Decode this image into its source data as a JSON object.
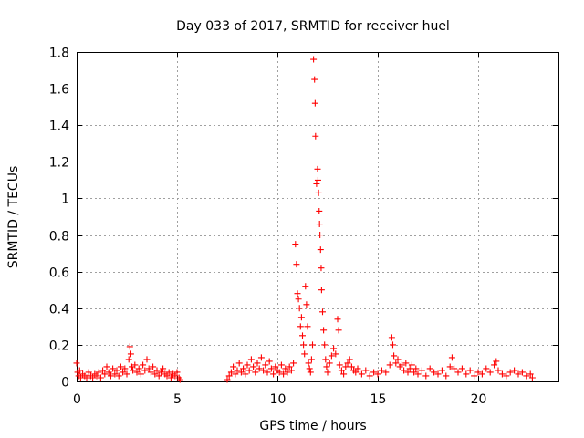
{
  "chart_data": {
    "type": "scatter",
    "title": "Day 033 of 2017, SRMTID for receiver huel",
    "xlabel": "GPS time / hours",
    "ylabel": "SRMTID / TECUs",
    "xlim": [
      0,
      24
    ],
    "ylim": [
      0,
      1.8
    ],
    "xticks": [
      0,
      5,
      10,
      15,
      20
    ],
    "xtick_labels": [
      "0",
      "5",
      "10",
      "15",
      "20"
    ],
    "yticks": [
      0,
      0.2,
      0.4,
      0.6,
      0.8,
      1.0,
      1.2,
      1.4,
      1.6,
      1.8
    ],
    "ytick_labels": [
      "0",
      "0.2",
      "0.4",
      "0.6",
      "0.8",
      "1",
      "1.2",
      "1.4",
      "1.6",
      "1.8"
    ],
    "grid": true,
    "marker": "+",
    "color": "#ff0000",
    "series": [
      {
        "name": "SRMTID",
        "points": [
          [
            0.0,
            0.1
          ],
          [
            0.05,
            0.05
          ],
          [
            0.1,
            0.03
          ],
          [
            0.15,
            0.06
          ],
          [
            0.2,
            0.02
          ],
          [
            0.3,
            0.04
          ],
          [
            0.4,
            0.03
          ],
          [
            0.5,
            0.02
          ],
          [
            0.6,
            0.05
          ],
          [
            0.7,
            0.03
          ],
          [
            0.8,
            0.02
          ],
          [
            0.9,
            0.04
          ],
          [
            1.0,
            0.03
          ],
          [
            1.1,
            0.05
          ],
          [
            1.2,
            0.02
          ],
          [
            1.3,
            0.06
          ],
          [
            1.4,
            0.04
          ],
          [
            1.5,
            0.08
          ],
          [
            1.6,
            0.05
          ],
          [
            1.7,
            0.03
          ],
          [
            1.8,
            0.07
          ],
          [
            1.9,
            0.04
          ],
          [
            2.0,
            0.06
          ],
          [
            2.1,
            0.03
          ],
          [
            2.2,
            0.08
          ],
          [
            2.3,
            0.05
          ],
          [
            2.4,
            0.07
          ],
          [
            2.5,
            0.04
          ],
          [
            2.6,
            0.12
          ],
          [
            2.65,
            0.19
          ],
          [
            2.7,
            0.15
          ],
          [
            2.75,
            0.08
          ],
          [
            2.8,
            0.06
          ],
          [
            2.9,
            0.09
          ],
          [
            3.0,
            0.05
          ],
          [
            3.1,
            0.07
          ],
          [
            3.2,
            0.04
          ],
          [
            3.3,
            0.09
          ],
          [
            3.4,
            0.06
          ],
          [
            3.5,
            0.12
          ],
          [
            3.6,
            0.07
          ],
          [
            3.7,
            0.05
          ],
          [
            3.8,
            0.08
          ],
          [
            3.9,
            0.04
          ],
          [
            4.0,
            0.06
          ],
          [
            4.1,
            0.03
          ],
          [
            4.2,
            0.05
          ],
          [
            4.3,
            0.07
          ],
          [
            4.4,
            0.04
          ],
          [
            4.5,
            0.03
          ],
          [
            4.6,
            0.05
          ],
          [
            4.7,
            0.02
          ],
          [
            4.8,
            0.04
          ],
          [
            4.9,
            0.03
          ],
          [
            5.0,
            0.05
          ],
          [
            5.1,
            0.02
          ],
          [
            5.15,
            0.01
          ],
          [
            7.5,
            0.01
          ],
          [
            7.6,
            0.03
          ],
          [
            7.7,
            0.05
          ],
          [
            7.8,
            0.08
          ],
          [
            7.9,
            0.04
          ],
          [
            8.0,
            0.06
          ],
          [
            8.1,
            0.1
          ],
          [
            8.2,
            0.05
          ],
          [
            8.3,
            0.07
          ],
          [
            8.4,
            0.04
          ],
          [
            8.5,
            0.09
          ],
          [
            8.6,
            0.06
          ],
          [
            8.7,
            0.12
          ],
          [
            8.8,
            0.08
          ],
          [
            8.9,
            0.05
          ],
          [
            9.0,
            0.1
          ],
          [
            9.1,
            0.07
          ],
          [
            9.2,
            0.13
          ],
          [
            9.3,
            0.06
          ],
          [
            9.4,
            0.09
          ],
          [
            9.5,
            0.05
          ],
          [
            9.6,
            0.11
          ],
          [
            9.7,
            0.07
          ],
          [
            9.8,
            0.04
          ],
          [
            9.9,
            0.08
          ],
          [
            10.0,
            0.06
          ],
          [
            10.1,
            0.05
          ],
          [
            10.2,
            0.09
          ],
          [
            10.3,
            0.04
          ],
          [
            10.4,
            0.07
          ],
          [
            10.5,
            0.05
          ],
          [
            10.6,
            0.08
          ],
          [
            10.7,
            0.06
          ],
          [
            10.8,
            0.1
          ],
          [
            10.9,
            0.75
          ],
          [
            10.95,
            0.64
          ],
          [
            11.0,
            0.48
          ],
          [
            11.05,
            0.45
          ],
          [
            11.1,
            0.4
          ],
          [
            11.15,
            0.3
          ],
          [
            11.2,
            0.35
          ],
          [
            11.25,
            0.25
          ],
          [
            11.3,
            0.2
          ],
          [
            11.35,
            0.15
          ],
          [
            11.4,
            0.52
          ],
          [
            11.45,
            0.42
          ],
          [
            11.5,
            0.3
          ],
          [
            11.55,
            0.1
          ],
          [
            11.6,
            0.07
          ],
          [
            11.65,
            0.05
          ],
          [
            11.7,
            0.12
          ],
          [
            11.75,
            0.2
          ],
          [
            11.8,
            1.76
          ],
          [
            11.85,
            1.65
          ],
          [
            11.88,
            1.52
          ],
          [
            11.9,
            1.34
          ],
          [
            11.95,
            1.08
          ],
          [
            12.0,
            1.16
          ],
          [
            12.02,
            1.1
          ],
          [
            12.05,
            1.03
          ],
          [
            12.08,
            0.93
          ],
          [
            12.1,
            0.86
          ],
          [
            12.12,
            0.8
          ],
          [
            12.15,
            0.72
          ],
          [
            12.18,
            0.62
          ],
          [
            12.2,
            0.5
          ],
          [
            12.25,
            0.38
          ],
          [
            12.3,
            0.28
          ],
          [
            12.35,
            0.2
          ],
          [
            12.4,
            0.12
          ],
          [
            12.45,
            0.08
          ],
          [
            12.5,
            0.05
          ],
          [
            12.6,
            0.1
          ],
          [
            12.7,
            0.14
          ],
          [
            12.8,
            0.18
          ],
          [
            12.9,
            0.15
          ],
          [
            13.0,
            0.34
          ],
          [
            13.05,
            0.28
          ],
          [
            13.1,
            0.09
          ],
          [
            13.2,
            0.06
          ],
          [
            13.3,
            0.04
          ],
          [
            13.4,
            0.08
          ],
          [
            13.5,
            0.1
          ],
          [
            13.6,
            0.12
          ],
          [
            13.7,
            0.08
          ],
          [
            13.8,
            0.06
          ],
          [
            13.9,
            0.05
          ],
          [
            14.0,
            0.07
          ],
          [
            14.2,
            0.04
          ],
          [
            14.4,
            0.06
          ],
          [
            14.6,
            0.03
          ],
          [
            14.8,
            0.05
          ],
          [
            15.0,
            0.04
          ],
          [
            15.2,
            0.06
          ],
          [
            15.4,
            0.05
          ],
          [
            15.6,
            0.09
          ],
          [
            15.7,
            0.24
          ],
          [
            15.75,
            0.2
          ],
          [
            15.8,
            0.14
          ],
          [
            15.9,
            0.1
          ],
          [
            16.0,
            0.12
          ],
          [
            16.1,
            0.08
          ],
          [
            16.2,
            0.09
          ],
          [
            16.3,
            0.06
          ],
          [
            16.4,
            0.1
          ],
          [
            16.5,
            0.05
          ],
          [
            16.6,
            0.07
          ],
          [
            16.7,
            0.09
          ],
          [
            16.8,
            0.05
          ],
          [
            16.9,
            0.07
          ],
          [
            17.0,
            0.04
          ],
          [
            17.2,
            0.06
          ],
          [
            17.4,
            0.03
          ],
          [
            17.6,
            0.07
          ],
          [
            17.8,
            0.05
          ],
          [
            18.0,
            0.04
          ],
          [
            18.2,
            0.06
          ],
          [
            18.4,
            0.03
          ],
          [
            18.6,
            0.08
          ],
          [
            18.7,
            0.13
          ],
          [
            18.8,
            0.07
          ],
          [
            19.0,
            0.05
          ],
          [
            19.2,
            0.07
          ],
          [
            19.4,
            0.04
          ],
          [
            19.6,
            0.06
          ],
          [
            19.8,
            0.03
          ],
          [
            20.0,
            0.05
          ],
          [
            20.2,
            0.04
          ],
          [
            20.4,
            0.07
          ],
          [
            20.6,
            0.05
          ],
          [
            20.8,
            0.09
          ],
          [
            20.9,
            0.11
          ],
          [
            21.0,
            0.06
          ],
          [
            21.2,
            0.04
          ],
          [
            21.4,
            0.03
          ],
          [
            21.6,
            0.05
          ],
          [
            21.8,
            0.06
          ],
          [
            22.0,
            0.04
          ],
          [
            22.2,
            0.05
          ],
          [
            22.4,
            0.03
          ],
          [
            22.6,
            0.04
          ],
          [
            22.7,
            0.02
          ]
        ]
      }
    ]
  }
}
